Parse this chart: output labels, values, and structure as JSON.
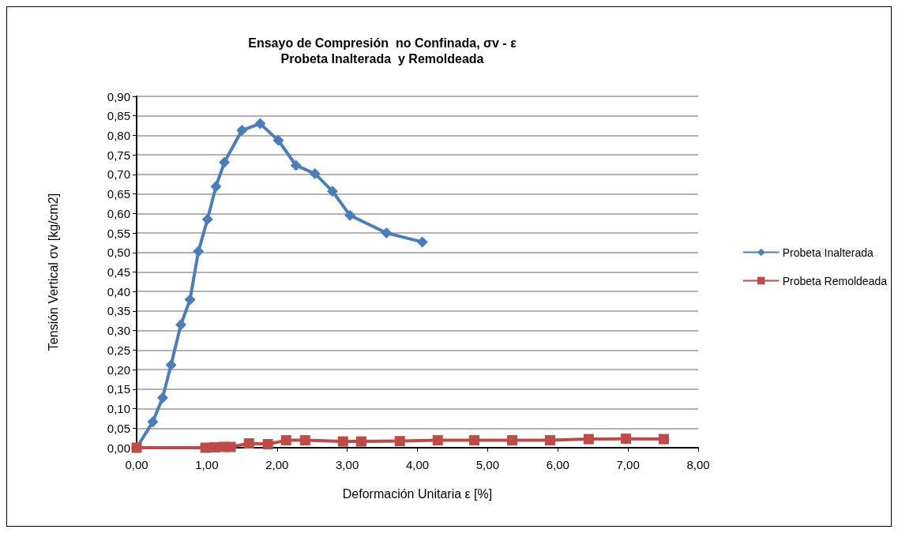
{
  "chart_data": {
    "type": "line",
    "title": "Ensayo de Compresión  no Confinada, σv - ε\nProbeta Inalterada  y Remoldeada",
    "xlabel": "Deformación Unitaria ε [%]",
    "ylabel": "Tensión Vertical σv [kg/cm2]",
    "series": [
      {
        "name": "Probeta Inalterada",
        "color": "#4a7ebb",
        "marker": "diamond",
        "x": [
          0,
          0.23,
          0.37,
          0.49,
          0.63,
          0.76,
          0.88,
          1.01,
          1.13,
          1.25,
          1.5,
          1.76,
          2.02,
          2.27,
          2.54,
          2.79,
          3.04,
          3.56,
          4.07
        ],
        "values": [
          0,
          0.066,
          0.128,
          0.212,
          0.315,
          0.379,
          0.503,
          0.585,
          0.669,
          0.731,
          0.813,
          0.83,
          0.787,
          0.723,
          0.702,
          0.657,
          0.595,
          0.55,
          0.527
        ]
      },
      {
        "name": "Probeta Remoldeada",
        "color": "#be4b48",
        "marker": "square",
        "x": [
          0,
          0.98,
          1.11,
          1.24,
          1.34,
          1.6,
          1.87,
          2.13,
          2.4,
          2.94,
          3.2,
          3.75,
          4.29,
          4.81,
          5.35,
          5.89,
          6.44,
          6.97,
          7.51
        ],
        "values": [
          0,
          0,
          0.001,
          0.002,
          0.002,
          0.011,
          0.009,
          0.019,
          0.019,
          0.016,
          0.016,
          0.017,
          0.019,
          0.019,
          0.019,
          0.019,
          0.022,
          0.023,
          0.022
        ]
      }
    ],
    "xlim": [
      0,
      8
    ],
    "xticks": [
      {
        "value": 0,
        "label": "0,00"
      },
      {
        "value": 1,
        "label": "1,00"
      },
      {
        "value": 2,
        "label": "2,00"
      },
      {
        "value": 3,
        "label": "3,00"
      },
      {
        "value": 4,
        "label": "4,00"
      },
      {
        "value": 5,
        "label": "5,00"
      },
      {
        "value": 6,
        "label": "6,00"
      },
      {
        "value": 7,
        "label": "7,00"
      },
      {
        "value": 8,
        "label": "8,00"
      }
    ],
    "ylim": [
      0,
      0.9
    ],
    "yticks": [
      {
        "value": 0,
        "label": "0,00"
      },
      {
        "value": 0.05,
        "label": "0,05"
      },
      {
        "value": 0.1,
        "label": "0,10"
      },
      {
        "value": 0.15,
        "label": "0,15"
      },
      {
        "value": 0.2,
        "label": "0,20"
      },
      {
        "value": 0.25,
        "label": "0,25"
      },
      {
        "value": 0.3,
        "label": "0,30"
      },
      {
        "value": 0.35,
        "label": "0,35"
      },
      {
        "value": 0.4,
        "label": "0,40"
      },
      {
        "value": 0.45,
        "label": "0,45"
      },
      {
        "value": 0.5,
        "label": "0,50"
      },
      {
        "value": 0.55,
        "label": "0,55"
      },
      {
        "value": 0.6,
        "label": "0,60"
      },
      {
        "value": 0.65,
        "label": "0,65"
      },
      {
        "value": 0.7,
        "label": "0,70"
      },
      {
        "value": 0.75,
        "label": "0,75"
      },
      {
        "value": 0.8,
        "label": "0,80"
      },
      {
        "value": 0.85,
        "label": "0,85"
      },
      {
        "value": 0.9,
        "label": "0,90"
      }
    ],
    "grid": "y",
    "legend": "right",
    "line_style": "solid"
  }
}
